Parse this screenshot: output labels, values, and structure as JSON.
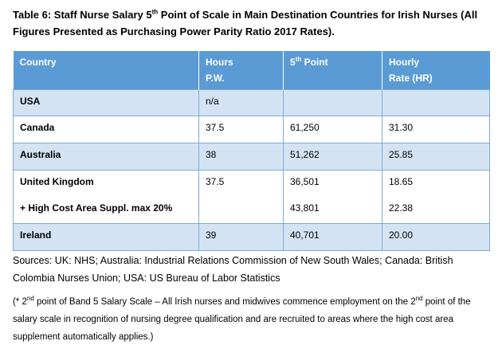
{
  "caption": {
    "part1": "Table 6: Staff Nurse Salary 5",
    "sup": "th",
    "part2": " Point of Scale in Main Destination Countries for Irish Nurses (All Figures Presented as Purchasing Power Parity Ratio 2017 Rates)."
  },
  "headers": {
    "country": "Country",
    "hours_l1": "Hours",
    "hours_l2": "P.W.",
    "point_main": "5",
    "point_sup": "th",
    "point_rest": " Point",
    "rate_l1": "Hourly",
    "rate_l2": "Rate (HR)"
  },
  "rows": [
    {
      "country": "USA",
      "hours": "n/a",
      "point": "",
      "rate": ""
    },
    {
      "country": "Canada",
      "hours": "37.5",
      "point": "61,250",
      "rate": "31.30"
    },
    {
      "country": "Australia",
      "hours": "38",
      "point": "51,262",
      "rate": "25.85"
    },
    {
      "country": "United Kingdom",
      "sub": "+ High Cost Area Suppl. max 20%",
      "hours": "37.5",
      "point": "36,501",
      "point2": "43,801",
      "rate": "18.65",
      "rate2": "22.38"
    },
    {
      "country": "Ireland",
      "hours": "39",
      "point": "40,701",
      "rate": "20.00"
    }
  ],
  "sources": "Sources: UK: NHS; Australia: Industrial Relations Commission of New South Wales; Canada: British Colombia Nurses Union; USA: US Bureau of Labor Statistics",
  "footnote": {
    "p1": "(* 2",
    "sup1": "nd",
    "p2": " point of Band 5 Salary Scale – All Irish nurses and midwives commence employment on the 2",
    "sup2": "nd",
    "p3": " point of the salary scale in recognition of nursing degree qualification and are recruited to areas where the high cost area supplement automatically applies.)"
  },
  "colors": {
    "header_bg": "#5b9bd5",
    "band_bg": "#d3e3f3",
    "border": "#7fa8d8"
  }
}
